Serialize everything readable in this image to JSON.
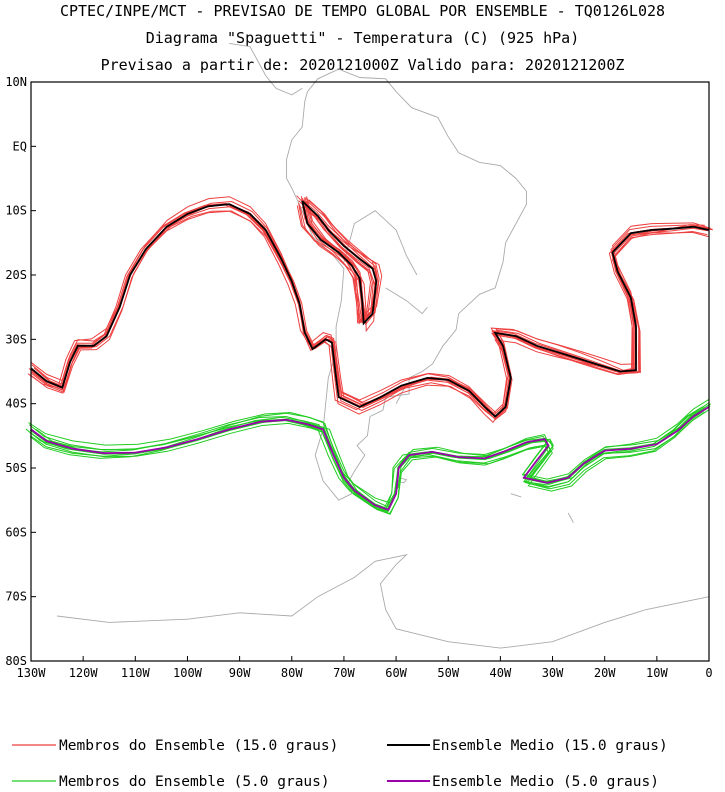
{
  "titles": {
    "line1": "CPTEC/INPE/MCT - PREVISAO DE TEMPO GLOBAL POR ENSEMBLE - TQ0126L028",
    "line2": "Diagrama \"Spaguetti\" - Temperatura (C) (925 hPa)",
    "line3": "Previsao a partir de: 2020121000Z  Valido para: 2020121200Z"
  },
  "colors": {
    "members_15": "#ee4040",
    "mean_15": "#000000",
    "members_5": "#22cc22",
    "mean_5": "#9900aa",
    "coast": "#aaaaaa",
    "frame": "#000000"
  },
  "chart_data": {
    "type": "line",
    "xlim": [
      -130,
      0
    ],
    "ylim": [
      -80,
      10
    ],
    "xticks": [
      {
        "value": -130,
        "label": "130W"
      },
      {
        "value": -120,
        "label": "120W"
      },
      {
        "value": -110,
        "label": "110W"
      },
      {
        "value": -100,
        "label": "100W"
      },
      {
        "value": -90,
        "label": "90W"
      },
      {
        "value": -80,
        "label": "80W"
      },
      {
        "value": -70,
        "label": "70W"
      },
      {
        "value": -60,
        "label": "60W"
      },
      {
        "value": -50,
        "label": "50W"
      },
      {
        "value": -40,
        "label": "40W"
      },
      {
        "value": -30,
        "label": "30W"
      },
      {
        "value": -20,
        "label": "20W"
      },
      {
        "value": -10,
        "label": "10W"
      },
      {
        "value": 0,
        "label": "0"
      }
    ],
    "yticks": [
      {
        "value": 10,
        "label": "10N"
      },
      {
        "value": 0,
        "label": "EQ"
      },
      {
        "value": -10,
        "label": "10S"
      },
      {
        "value": -20,
        "label": "20S"
      },
      {
        "value": -30,
        "label": "30S"
      },
      {
        "value": -40,
        "label": "40S"
      },
      {
        "value": -50,
        "label": "50S"
      },
      {
        "value": -60,
        "label": "60S"
      },
      {
        "value": -70,
        "label": "70S"
      },
      {
        "value": -80,
        "label": "80S"
      }
    ],
    "series": [
      {
        "name": "Ensemble Medio (15.0 graus)",
        "style": "mean_15",
        "segments": [
          [
            [
              -130,
              -34.5
            ],
            [
              -127,
              -36.5
            ],
            [
              -124,
              -37.5
            ],
            [
              -122.5,
              -33.5
            ],
            [
              -121,
              -31
            ],
            [
              -118,
              -31
            ],
            [
              -115.5,
              -29.5
            ],
            [
              -113,
              -25
            ],
            [
              -111,
              -20
            ],
            [
              -108,
              -16
            ],
            [
              -104,
              -12.5
            ],
            [
              -100,
              -10.5
            ],
            [
              -96,
              -9.3
            ],
            [
              -92,
              -9
            ],
            [
              -88,
              -10.5
            ],
            [
              -85,
              -13
            ],
            [
              -82,
              -17.5
            ],
            [
              -80,
              -21
            ],
            [
              -78.5,
              -24.5
            ],
            [
              -77.5,
              -29
            ],
            [
              -76,
              -31.5
            ],
            [
              -73.5,
              -30
            ],
            [
              -72.3,
              -30.5
            ],
            [
              -71.5,
              -36
            ],
            [
              -71,
              -39
            ],
            [
              -67,
              -40.5
            ],
            [
              -63,
              -39
            ],
            [
              -59,
              -37.2
            ],
            [
              -54,
              -36
            ],
            [
              -50,
              -36.3
            ],
            [
              -46,
              -38
            ],
            [
              -43,
              -40.5
            ],
            [
              -41,
              -42
            ],
            [
              -39,
              -40.5
            ],
            [
              -38,
              -36
            ],
            [
              -39.5,
              -31
            ],
            [
              -41,
              -29
            ],
            [
              -37,
              -29.5
            ],
            [
              -33,
              -31
            ],
            [
              -29,
              -32
            ],
            [
              -25,
              -33
            ],
            [
              -21,
              -34
            ],
            [
              -17,
              -35
            ],
            [
              -14,
              -34.8
            ],
            [
              -14,
              -28
            ],
            [
              -15,
              -23.5
            ],
            [
              -17.5,
              -19.5
            ],
            [
              -18.5,
              -16.5
            ],
            [
              -15,
              -13.5
            ],
            [
              -11,
              -13
            ],
            [
              -7,
              -12.8
            ],
            [
              -3,
              -12.5
            ],
            [
              0,
              -13
            ]
          ],
          [
            [
              -78,
              -8.5
            ],
            [
              -77,
              -12
            ],
            [
              -74.5,
              -14.5
            ],
            [
              -71,
              -16.5
            ],
            [
              -68.5,
              -18.5
            ],
            [
              -67,
              -20.5
            ],
            [
              -66.5,
              -24
            ],
            [
              -66.2,
              -27.5
            ],
            [
              -64.5,
              -26
            ],
            [
              -63.8,
              -21
            ],
            [
              -64.5,
              -19
            ],
            [
              -67,
              -17.5
            ],
            [
              -70,
              -15.5
            ],
            [
              -73,
              -13
            ],
            [
              -75,
              -10.8
            ],
            [
              -78,
              -8.5
            ]
          ]
        ]
      },
      {
        "name": "Ensemble Medio (5.0 graus)",
        "style": "mean_5",
        "segments": [
          [
            [
              -130,
              -44
            ],
            [
              -127,
              -45.8
            ],
            [
              -122,
              -47
            ],
            [
              -116,
              -47.7
            ],
            [
              -110,
              -47.6
            ],
            [
              -104,
              -46.8
            ],
            [
              -98,
              -45.5
            ],
            [
              -92,
              -44
            ],
            [
              -86,
              -42.8
            ],
            [
              -81,
              -42.5
            ],
            [
              -77,
              -43.2
            ],
            [
              -74,
              -44
            ],
            [
              -72,
              -48
            ],
            [
              -70,
              -51.5
            ],
            [
              -68,
              -53.5
            ],
            [
              -64,
              -55.8
            ],
            [
              -61.5,
              -56.5
            ],
            [
              -60,
              -54
            ],
            [
              -59.5,
              -50
            ],
            [
              -57.5,
              -48
            ],
            [
              -53,
              -47.5
            ],
            [
              -48,
              -48.3
            ],
            [
              -43,
              -48.5
            ],
            [
              -39.5,
              -47.5
            ],
            [
              -35,
              -46
            ],
            [
              -31.5,
              -45.5
            ],
            [
              -30.8,
              -46.5
            ],
            [
              -33,
              -48.8
            ],
            [
              -35.5,
              -51.5
            ],
            [
              -31,
              -52.3
            ],
            [
              -27,
              -51.5
            ],
            [
              -24,
              -49.3
            ],
            [
              -20,
              -47.3
            ],
            [
              -15,
              -47
            ],
            [
              -10,
              -46.3
            ],
            [
              -6,
              -44.2
            ],
            [
              -3,
              -42
            ],
            [
              0,
              -40.5
            ]
          ]
        ]
      }
    ]
  },
  "legend": {
    "members_15": "Membros do Ensemble (15.0 graus)",
    "mean_15": "Ensemble Medio (15.0 graus)",
    "members_5": "Membros do Ensemble (5.0 graus)",
    "mean_5": "Ensemble Medio (5.0 graus)"
  }
}
